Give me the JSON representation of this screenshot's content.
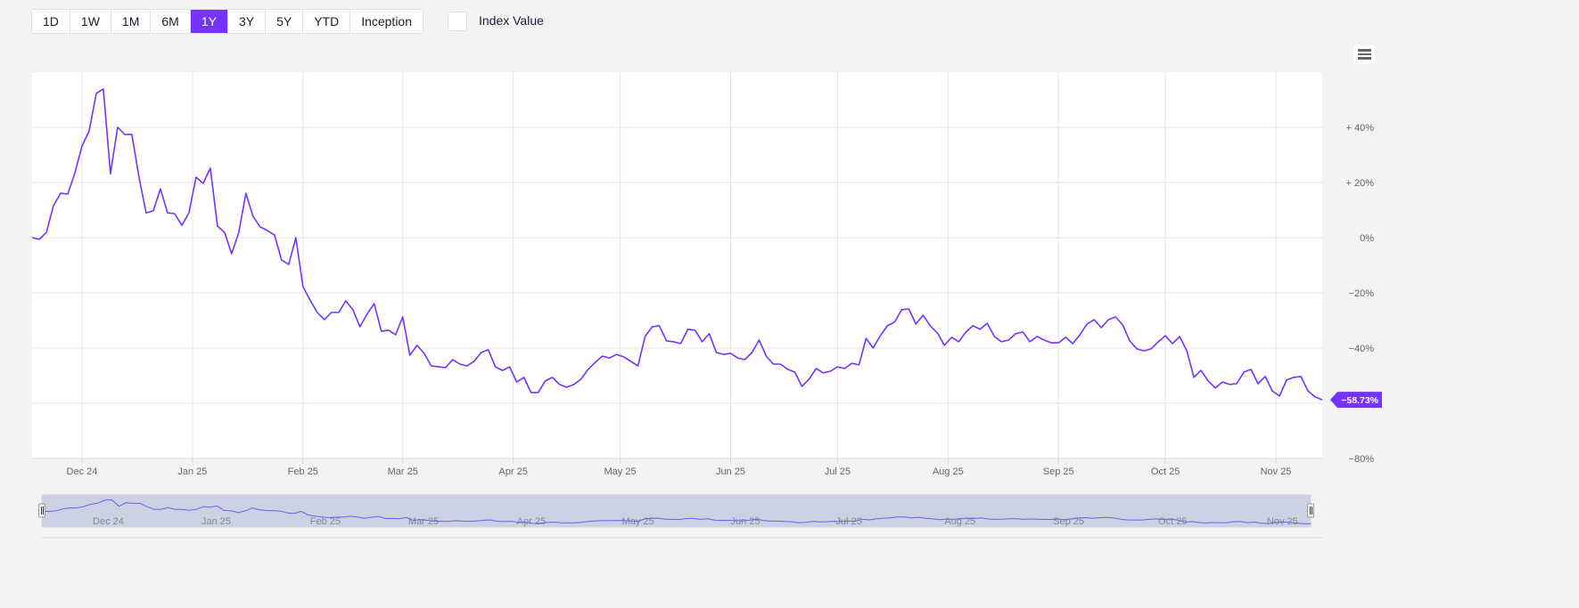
{
  "toolbar": {
    "ranges": [
      "1D",
      "1W",
      "1M",
      "6M",
      "1Y",
      "3Y",
      "5Y",
      "YTD",
      "Inception"
    ],
    "active_range": "1Y",
    "index_value_label": "Index Value",
    "index_value_checked": false,
    "menu_icon": "hamburger-menu-icon"
  },
  "colors": {
    "accent": "#7433ff",
    "line": "#7433ff",
    "grid": "#e6e6e6",
    "navigator_fill": "#c8cde2"
  },
  "chart_data": {
    "type": "line",
    "title": "",
    "xlabel": "",
    "ylabel": "",
    "ylim": [
      -80,
      60
    ],
    "y_ticks": [
      {
        "value": 40,
        "label": "+ 40%"
      },
      {
        "value": 20,
        "label": "+ 20%"
      },
      {
        "value": 0,
        "label": "0%"
      },
      {
        "value": -20,
        "label": "−20%"
      },
      {
        "value": -40,
        "label": "−40%"
      },
      {
        "value": -80,
        "label": "−80%"
      }
    ],
    "y_gridlines": [
      40,
      20,
      0,
      -20,
      -40,
      -60,
      -80
    ],
    "x_ticks": [
      {
        "date": "2024-12-01",
        "label": "Dec 24"
      },
      {
        "date": "2025-01-01",
        "label": "Jan 25"
      },
      {
        "date": "2025-02-01",
        "label": "Feb 25"
      },
      {
        "date": "2025-03-01",
        "label": "Mar 25"
      },
      {
        "date": "2025-04-01",
        "label": "Apr 25"
      },
      {
        "date": "2025-05-01",
        "label": "May 25"
      },
      {
        "date": "2025-06-01",
        "label": "Jun 25"
      },
      {
        "date": "2025-07-01",
        "label": "Jul 25"
      },
      {
        "date": "2025-08-01",
        "label": "Aug 25"
      },
      {
        "date": "2025-09-01",
        "label": "Sep 25"
      },
      {
        "date": "2025-10-01",
        "label": "Oct 25"
      },
      {
        "date": "2025-11-01",
        "label": "Nov 25"
      }
    ],
    "grid": true,
    "last_value_label": "−58.73%",
    "navigator": true,
    "x": [
      "2024-11-17",
      "2024-11-19",
      "2024-11-21",
      "2024-11-23",
      "2024-11-25",
      "2024-11-27",
      "2024-11-29",
      "2024-12-01",
      "2024-12-03",
      "2024-12-05",
      "2024-12-07",
      "2024-12-09",
      "2024-12-11",
      "2024-12-13",
      "2024-12-15",
      "2024-12-17",
      "2024-12-19",
      "2024-12-21",
      "2024-12-23",
      "2024-12-25",
      "2024-12-27",
      "2024-12-29",
      "2024-12-31",
      "2025-01-02",
      "2025-01-04",
      "2025-01-06",
      "2025-01-08",
      "2025-01-10",
      "2025-01-12",
      "2025-01-14",
      "2025-01-16",
      "2025-01-18",
      "2025-01-20",
      "2025-01-22",
      "2025-01-24",
      "2025-01-26",
      "2025-01-28",
      "2025-01-30",
      "2025-02-01",
      "2025-02-03",
      "2025-02-05",
      "2025-02-07",
      "2025-02-09",
      "2025-02-11",
      "2025-02-13",
      "2025-02-15",
      "2025-02-17",
      "2025-02-19",
      "2025-02-21",
      "2025-02-23",
      "2025-02-25",
      "2025-02-27",
      "2025-03-01",
      "2025-03-03",
      "2025-03-05",
      "2025-03-07",
      "2025-03-09",
      "2025-03-11",
      "2025-03-13",
      "2025-03-15",
      "2025-03-17",
      "2025-03-19",
      "2025-03-21",
      "2025-03-23",
      "2025-03-25",
      "2025-03-27",
      "2025-03-29",
      "2025-03-31",
      "2025-04-02",
      "2025-04-04",
      "2025-04-06",
      "2025-04-08",
      "2025-04-10",
      "2025-04-12",
      "2025-04-14",
      "2025-04-16",
      "2025-04-18",
      "2025-04-20",
      "2025-04-22",
      "2025-04-24",
      "2025-04-26",
      "2025-04-28",
      "2025-04-30",
      "2025-05-02",
      "2025-05-04",
      "2025-05-06",
      "2025-05-08",
      "2025-05-10",
      "2025-05-12",
      "2025-05-14",
      "2025-05-16",
      "2025-05-18",
      "2025-05-20",
      "2025-05-22",
      "2025-05-24",
      "2025-05-26",
      "2025-05-28",
      "2025-05-30",
      "2025-06-01",
      "2025-06-03",
      "2025-06-05",
      "2025-06-07",
      "2025-06-09",
      "2025-06-11",
      "2025-06-13",
      "2025-06-15",
      "2025-06-17",
      "2025-06-19",
      "2025-06-21",
      "2025-06-23",
      "2025-06-25",
      "2025-06-27",
      "2025-06-29",
      "2025-07-01",
      "2025-07-03",
      "2025-07-05",
      "2025-07-07",
      "2025-07-09",
      "2025-07-11",
      "2025-07-13",
      "2025-07-15",
      "2025-07-17",
      "2025-07-19",
      "2025-07-21",
      "2025-07-23",
      "2025-07-25",
      "2025-07-27",
      "2025-07-29",
      "2025-07-31",
      "2025-08-02",
      "2025-08-04",
      "2025-08-06",
      "2025-08-08",
      "2025-08-10",
      "2025-08-12",
      "2025-08-14",
      "2025-08-16",
      "2025-08-18",
      "2025-08-20",
      "2025-08-22",
      "2025-08-24",
      "2025-08-26",
      "2025-08-28",
      "2025-08-30",
      "2025-09-01",
      "2025-09-03",
      "2025-09-05",
      "2025-09-07",
      "2025-09-09",
      "2025-09-11",
      "2025-09-13",
      "2025-09-15",
      "2025-09-17",
      "2025-09-19",
      "2025-09-21",
      "2025-09-23",
      "2025-09-25",
      "2025-09-27",
      "2025-09-29",
      "2025-10-01",
      "2025-10-03",
      "2025-10-05",
      "2025-10-07",
      "2025-10-09",
      "2025-10-11",
      "2025-10-13",
      "2025-10-15",
      "2025-10-17",
      "2025-10-19",
      "2025-10-21",
      "2025-10-23",
      "2025-10-25",
      "2025-10-27",
      "2025-10-29",
      "2025-10-31",
      "2025-11-02",
      "2025-11-04",
      "2025-11-06",
      "2025-11-08",
      "2025-11-10",
      "2025-11-12",
      "2025-11-14"
    ],
    "series": [
      {
        "values": [
          0,
          -0.6,
          1.9,
          11.6,
          16.1,
          15.8,
          23.5,
          33.2,
          38.7,
          52.3,
          53.9,
          23.2,
          40.0,
          37.4,
          37.4,
          21.9,
          9.0,
          9.7,
          17.7,
          9.0,
          8.7,
          4.5,
          9.0,
          21.9,
          19.7,
          25.2,
          4.2,
          1.9,
          -5.8,
          1.9,
          16.1,
          7.7,
          3.9,
          2.6,
          1.0,
          -8.1,
          -9.7,
          0,
          -17.7,
          -22.6,
          -27.1,
          -29.7,
          -27.1,
          -27.1,
          -22.9,
          -26.1,
          -32.3,
          -27.7,
          -23.9,
          -33.9,
          -33.5,
          -35.2,
          -28.7,
          -42.6,
          -39.0,
          -41.9,
          -46.5,
          -46.8,
          -47.1,
          -44.2,
          -45.8,
          -46.5,
          -44.8,
          -41.6,
          -40.6,
          -46.8,
          -48.1,
          -46.8,
          -52.3,
          -50.6,
          -56.1,
          -56.1,
          -51.9,
          -50.6,
          -53.2,
          -54.2,
          -53.2,
          -51.3,
          -47.7,
          -45.2,
          -42.9,
          -43.6,
          -42.3,
          -43.2,
          -44.8,
          -46.5,
          -35.8,
          -32.3,
          -31.9,
          -37.4,
          -37.7,
          -38.4,
          -33.2,
          -33.5,
          -37.7,
          -34.8,
          -41.6,
          -42.3,
          -41.9,
          -43.6,
          -44.2,
          -41.6,
          -37.1,
          -42.9,
          -45.8,
          -45.8,
          -47.7,
          -48.7,
          -53.9,
          -51.3,
          -47.4,
          -49.0,
          -48.4,
          -46.8,
          -47.4,
          -45.5,
          -46.1,
          -36.5,
          -40.0,
          -35.5,
          -31.9,
          -30.6,
          -26.1,
          -25.8,
          -31.3,
          -28.1,
          -31.9,
          -34.5,
          -39.0,
          -36.1,
          -37.7,
          -34.2,
          -31.9,
          -33.2,
          -31.0,
          -35.8,
          -37.7,
          -37.1,
          -34.8,
          -34.2,
          -37.7,
          -35.8,
          -37.1,
          -38.1,
          -38.1,
          -36.1,
          -38.4,
          -35.2,
          -31.3,
          -29.7,
          -32.6,
          -29.7,
          -28.7,
          -31.6,
          -37.4,
          -40.3,
          -41.0,
          -40.3,
          -37.7,
          -35.5,
          -38.4,
          -35.8,
          -41.0,
          -50.6,
          -48.1,
          -51.9,
          -54.5,
          -52.3,
          -53.2,
          -52.9,
          -48.7,
          -47.7,
          -52.9,
          -50.3,
          -55.5,
          -57.4,
          -51.6,
          -50.6,
          -50.3,
          -55.5,
          -57.7,
          -58.73
        ]
      }
    ]
  }
}
